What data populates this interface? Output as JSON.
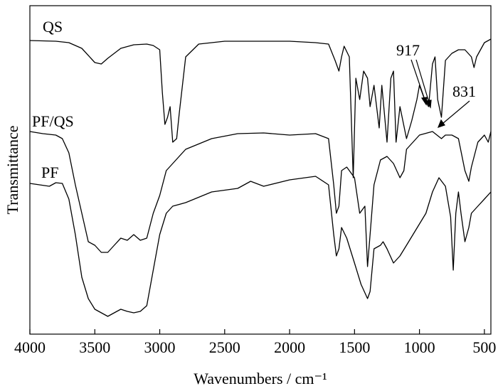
{
  "chart_data": {
    "type": "line",
    "xlabel": "Wavenumbers / cm⁻¹",
    "ylabel": "Transmittance",
    "xlim": [
      4000,
      450
    ],
    "xticks": [
      4000,
      3500,
      3000,
      2500,
      2000,
      1500,
      1000,
      500
    ],
    "ylim": [
      0,
      462
    ],
    "series": [
      {
        "name": "QS",
        "color": "#000000",
        "x": [
          4000,
          3800,
          3700,
          3600,
          3500,
          3450,
          3400,
          3300,
          3200,
          3100,
          3050,
          3000,
          2980,
          2960,
          2940,
          2920,
          2900,
          2870,
          2850,
          2800,
          2700,
          2500,
          2000,
          1800,
          1700,
          1650,
          1620,
          1600,
          1580,
          1540,
          1510,
          1490,
          1460,
          1430,
          1400,
          1380,
          1350,
          1310,
          1290,
          1250,
          1220,
          1200,
          1180,
          1150,
          1100,
          1060,
          1020,
          1000,
          960,
          930,
          900,
          880,
          860,
          831,
          800,
          750,
          700,
          650,
          600,
          580,
          560,
          500,
          450
        ],
        "values": [
          413,
          412,
          410,
          402,
          382,
          380,
          388,
          402,
          407,
          408,
          406,
          400,
          340,
          295,
          305,
          320,
          270,
          275,
          310,
          390,
          408,
          412,
          412,
          410,
          408,
          385,
          370,
          390,
          405,
          390,
          220,
          360,
          330,
          370,
          360,
          320,
          350,
          290,
          350,
          270,
          360,
          370,
          270,
          320,
          275,
          300,
          330,
          350,
          330,
          320,
          380,
          390,
          330,
          305,
          385,
          395,
          400,
          400,
          390,
          375,
          390,
          410,
          415
        ]
      },
      {
        "name": "PF/QS",
        "color": "#000000",
        "x": [
          4000,
          3900,
          3800,
          3750,
          3700,
          3650,
          3600,
          3550,
          3500,
          3450,
          3400,
          3350,
          3300,
          3250,
          3200,
          3150,
          3100,
          3050,
          3000,
          2950,
          2900,
          2800,
          2600,
          2400,
          2200,
          2000,
          1800,
          1700,
          1660,
          1640,
          1620,
          1600,
          1560,
          1500,
          1460,
          1420,
          1400,
          1380,
          1350,
          1300,
          1250,
          1200,
          1150,
          1120,
          1100,
          1050,
          1000,
          900,
          831,
          800,
          750,
          700,
          650,
          620,
          600,
          550,
          500,
          470,
          450
        ],
        "values": [
          285,
          282,
          280,
          275,
          255,
          210,
          170,
          130,
          125,
          115,
          115,
          125,
          135,
          132,
          140,
          132,
          135,
          170,
          195,
          230,
          240,
          260,
          275,
          282,
          283,
          280,
          282,
          275,
          210,
          170,
          180,
          230,
          235,
          220,
          170,
          180,
          95,
          140,
          210,
          245,
          250,
          240,
          220,
          230,
          260,
          270,
          280,
          285,
          275,
          280,
          280,
          275,
          230,
          215,
          235,
          270,
          280,
          270,
          285
        ]
      },
      {
        "name": "PF",
        "color": "#000000",
        "x": [
          4000,
          3850,
          3800,
          3750,
          3700,
          3650,
          3600,
          3550,
          3500,
          3450,
          3400,
          3350,
          3300,
          3250,
          3200,
          3150,
          3100,
          3050,
          3000,
          2950,
          2900,
          2800,
          2600,
          2400,
          2300,
          2200,
          2000,
          1800,
          1700,
          1660,
          1640,
          1620,
          1600,
          1560,
          1500,
          1450,
          1400,
          1380,
          1350,
          1300,
          1280,
          1250,
          1200,
          1150,
          1100,
          1050,
          1000,
          950,
          900,
          850,
          800,
          760,
          740,
          720,
          700,
          680,
          650,
          620,
          600,
          550,
          500,
          450
        ],
        "values": [
          212,
          208,
          213,
          212,
          190,
          140,
          80,
          50,
          35,
          30,
          25,
          30,
          35,
          32,
          30,
          32,
          40,
          90,
          140,
          170,
          180,
          185,
          200,
          205,
          215,
          208,
          217,
          222,
          210,
          140,
          110,
          120,
          150,
          135,
          100,
          70,
          50,
          60,
          120,
          125,
          130,
          120,
          100,
          110,
          125,
          140,
          155,
          170,
          200,
          220,
          208,
          165,
          90,
          170,
          200,
          170,
          130,
          150,
          170,
          180,
          190,
          200
        ]
      }
    ],
    "annotations": [
      "917",
      "831"
    ]
  }
}
